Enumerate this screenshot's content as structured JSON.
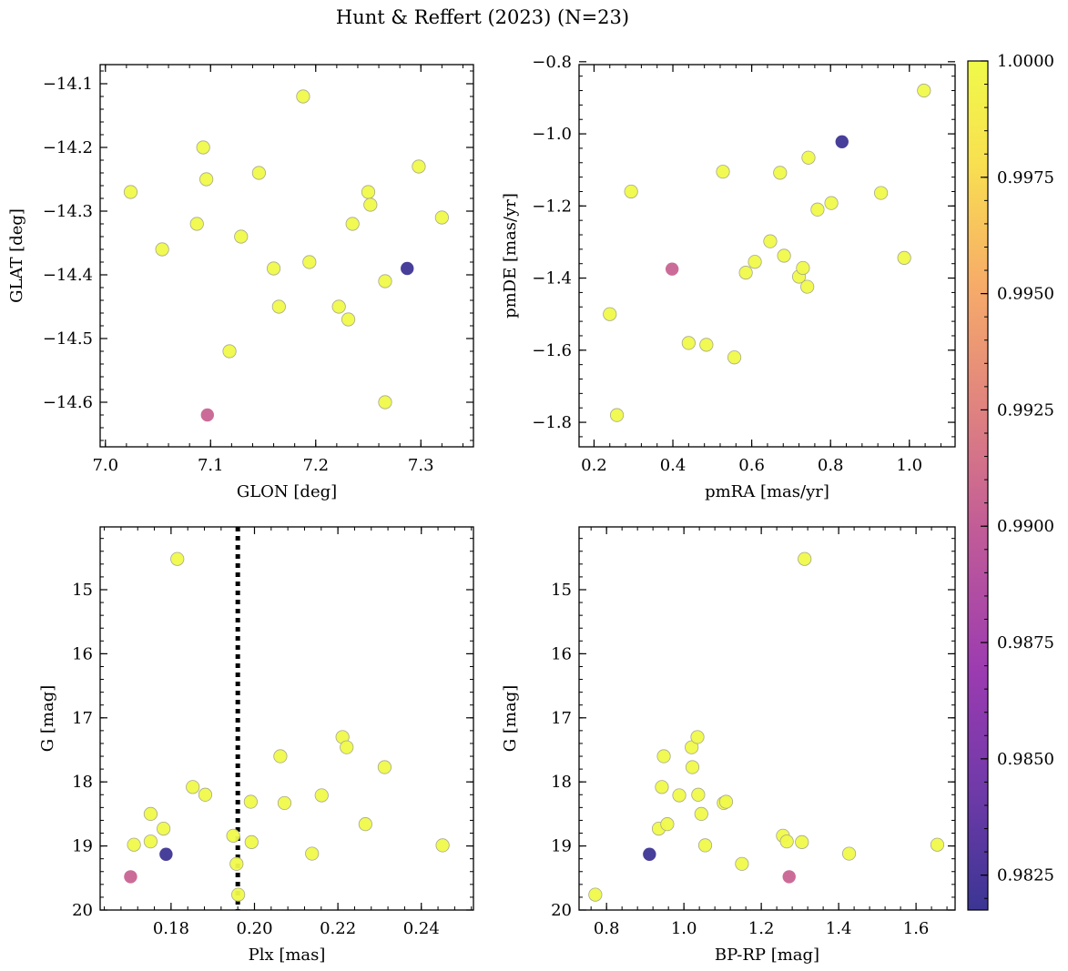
{
  "figure": {
    "title": "Hunt & Reffert (2023) (N=23)"
  },
  "colorbar": {
    "label_ticks": [
      "0.9825",
      "0.9850",
      "0.9875",
      "0.9900",
      "0.9925",
      "0.9950",
      "0.9975",
      "1.0000"
    ],
    "tick_values": [
      0.9825,
      0.985,
      0.9875,
      0.99,
      0.9925,
      0.995,
      0.9975,
      1.0
    ],
    "range": [
      0.98175,
      1.0
    ],
    "colormap": "plasma-like",
    "stops": [
      "#3b3594",
      "#6f3aa8",
      "#9b3bb1",
      "#c25c97",
      "#e2857e",
      "#f7ad68",
      "#f8e050",
      "#f0f94a"
    ]
  },
  "chart_data": [
    {
      "type": "scatter",
      "name": "glon-glat",
      "xlabel": "GLON [deg]",
      "ylabel": "GLAT [deg]",
      "xlim": [
        6.995,
        7.35
      ],
      "ylim": [
        -14.67,
        -14.07
      ],
      "inverted_y": false,
      "xticks": [
        7.0,
        7.1,
        7.2,
        7.3
      ],
      "xtick_labels": [
        "7.0",
        "7.1",
        "7.2",
        "7.3"
      ],
      "yticks": [
        -14.1,
        -14.2,
        -14.3,
        -14.4,
        -14.5,
        -14.6
      ],
      "ytick_labels": [
        "−14.1",
        "−14.2",
        "−14.3",
        "−14.4",
        "−14.5",
        "−14.6"
      ],
      "points": [
        {
          "x": 7.024,
          "y": -14.27,
          "c": 1.0
        },
        {
          "x": 7.054,
          "y": -14.36,
          "c": 1.0
        },
        {
          "x": 7.087,
          "y": -14.32,
          "c": 1.0
        },
        {
          "x": 7.093,
          "y": -14.2,
          "c": 1.0
        },
        {
          "x": 7.096,
          "y": -14.25,
          "c": 1.0
        },
        {
          "x": 7.097,
          "y": -14.62,
          "c": 0.9905
        },
        {
          "x": 7.118,
          "y": -14.52,
          "c": 1.0
        },
        {
          "x": 7.129,
          "y": -14.34,
          "c": 1.0
        },
        {
          "x": 7.146,
          "y": -14.24,
          "c": 1.0
        },
        {
          "x": 7.16,
          "y": -14.39,
          "c": 1.0
        },
        {
          "x": 7.165,
          "y": -14.45,
          "c": 1.0
        },
        {
          "x": 7.188,
          "y": -14.12,
          "c": 1.0
        },
        {
          "x": 7.194,
          "y": -14.38,
          "c": 1.0
        },
        {
          "x": 7.222,
          "y": -14.45,
          "c": 1.0
        },
        {
          "x": 7.231,
          "y": -14.47,
          "c": 1.0
        },
        {
          "x": 7.235,
          "y": -14.32,
          "c": 1.0
        },
        {
          "x": 7.25,
          "y": -14.27,
          "c": 1.0
        },
        {
          "x": 7.252,
          "y": -14.29,
          "c": 1.0
        },
        {
          "x": 7.266,
          "y": -14.41,
          "c": 1.0
        },
        {
          "x": 7.266,
          "y": -14.6,
          "c": 1.0
        },
        {
          "x": 7.287,
          "y": -14.39,
          "c": 0.9819
        },
        {
          "x": 7.298,
          "y": -14.23,
          "c": 1.0
        },
        {
          "x": 7.32,
          "y": -14.31,
          "c": 1.0
        }
      ]
    },
    {
      "type": "scatter",
      "name": "pm",
      "xlabel": "pmRA [mas/yr]",
      "ylabel": "pmDE [mas/yr]",
      "xlim": [
        0.162,
        1.116
      ],
      "ylim": [
        -1.868,
        -0.808
      ],
      "inverted_y": false,
      "xticks": [
        0.2,
        0.4,
        0.6,
        0.8,
        1.0
      ],
      "xtick_labels": [
        "0.2",
        "0.4",
        "0.6",
        "0.8",
        "1.0"
      ],
      "yticks": [
        -0.8,
        -1.0,
        -1.2,
        -1.4,
        -1.6,
        -1.8
      ],
      "ytick_labels": [
        "−0.8",
        "−1.0",
        "−1.2",
        "−1.4",
        "−1.6",
        "−1.8"
      ],
      "points": [
        {
          "x": 0.24,
          "y": -1.5,
          "c": 1.0
        },
        {
          "x": 0.258,
          "y": -1.78,
          "c": 1.0
        },
        {
          "x": 0.294,
          "y": -1.16,
          "c": 1.0
        },
        {
          "x": 0.398,
          "y": -1.375,
          "c": 0.9905
        },
        {
          "x": 0.44,
          "y": -1.58,
          "c": 1.0
        },
        {
          "x": 0.485,
          "y": -1.585,
          "c": 1.0
        },
        {
          "x": 0.527,
          "y": -1.105,
          "c": 1.0
        },
        {
          "x": 0.556,
          "y": -1.62,
          "c": 1.0
        },
        {
          "x": 0.585,
          "y": -1.385,
          "c": 1.0
        },
        {
          "x": 0.608,
          "y": -1.355,
          "c": 1.0
        },
        {
          "x": 0.647,
          "y": -1.298,
          "c": 1.0
        },
        {
          "x": 0.672,
          "y": -1.108,
          "c": 1.0
        },
        {
          "x": 0.682,
          "y": -1.338,
          "c": 1.0
        },
        {
          "x": 0.72,
          "y": -1.396,
          "c": 1.0
        },
        {
          "x": 0.73,
          "y": -1.372,
          "c": 1.0
        },
        {
          "x": 0.741,
          "y": -1.424,
          "c": 1.0
        },
        {
          "x": 0.744,
          "y": -1.066,
          "c": 1.0
        },
        {
          "x": 0.767,
          "y": -1.21,
          "c": 1.0
        },
        {
          "x": 0.802,
          "y": -1.192,
          "c": 1.0
        },
        {
          "x": 0.829,
          "y": -1.022,
          "c": 0.9819
        },
        {
          "x": 0.928,
          "y": -1.164,
          "c": 1.0
        },
        {
          "x": 0.987,
          "y": -1.344,
          "c": 1.0
        },
        {
          "x": 1.037,
          "y": -0.88,
          "c": 1.0
        }
      ]
    },
    {
      "type": "scatter",
      "name": "plx-g",
      "xlabel": "Plx [mas]",
      "ylabel": "G [mag]",
      "xlim": [
        0.163,
        0.2525
      ],
      "ylim": [
        20.0,
        14.02
      ],
      "inverted_y": true,
      "vline": {
        "x": 0.196,
        "style": "dotted"
      },
      "xticks": [
        0.18,
        0.2,
        0.22,
        0.24
      ],
      "xtick_labels": [
        "0.18",
        "0.20",
        "0.22",
        "0.24"
      ],
      "yticks": [
        15,
        16,
        17,
        18,
        19,
        20
      ],
      "ytick_labels": [
        "15",
        "16",
        "17",
        "18",
        "19",
        "20"
      ],
      "points": [
        {
          "x": 0.1703,
          "y": 19.48,
          "c": 0.9905
        },
        {
          "x": 0.1711,
          "y": 18.98,
          "c": 1.0
        },
        {
          "x": 0.1751,
          "y": 18.5,
          "c": 1.0
        },
        {
          "x": 0.1751,
          "y": 18.93,
          "c": 1.0
        },
        {
          "x": 0.1782,
          "y": 18.73,
          "c": 1.0
        },
        {
          "x": 0.1788,
          "y": 19.13,
          "c": 0.9819
        },
        {
          "x": 0.1815,
          "y": 14.52,
          "c": 1.0
        },
        {
          "x": 0.1852,
          "y": 18.08,
          "c": 1.0
        },
        {
          "x": 0.1882,
          "y": 18.2,
          "c": 1.0
        },
        {
          "x": 0.1949,
          "y": 18.84,
          "c": 1.0
        },
        {
          "x": 0.1957,
          "y": 19.28,
          "c": 1.0
        },
        {
          "x": 0.1961,
          "y": 19.76,
          "c": 1.0
        },
        {
          "x": 0.1991,
          "y": 18.31,
          "c": 1.0
        },
        {
          "x": 0.1993,
          "y": 18.94,
          "c": 1.0
        },
        {
          "x": 0.2062,
          "y": 17.6,
          "c": 1.0
        },
        {
          "x": 0.2072,
          "y": 18.33,
          "c": 1.0
        },
        {
          "x": 0.2138,
          "y": 19.12,
          "c": 1.0
        },
        {
          "x": 0.2161,
          "y": 18.21,
          "c": 1.0
        },
        {
          "x": 0.2211,
          "y": 17.3,
          "c": 1.0
        },
        {
          "x": 0.2221,
          "y": 17.46,
          "c": 1.0
        },
        {
          "x": 0.2266,
          "y": 18.66,
          "c": 1.0
        },
        {
          "x": 0.2312,
          "y": 17.77,
          "c": 1.0
        },
        {
          "x": 0.2451,
          "y": 18.99,
          "c": 1.0
        }
      ]
    },
    {
      "type": "scatter",
      "name": "cmd",
      "xlabel": "BP-RP [mag]",
      "ylabel": "G [mag]",
      "xlim": [
        0.729,
        1.701
      ],
      "ylim": [
        20.0,
        14.02
      ],
      "inverted_y": true,
      "xticks": [
        0.8,
        1.0,
        1.2,
        1.4,
        1.6
      ],
      "xtick_labels": [
        "0.8",
        "1.0",
        "1.2",
        "1.4",
        "1.6"
      ],
      "yticks": [
        15,
        16,
        17,
        18,
        19,
        20
      ],
      "ytick_labels": [
        "15",
        "16",
        "17",
        "18",
        "19",
        "20"
      ],
      "points": [
        {
          "x": 0.771,
          "y": 19.76,
          "c": 1.0
        },
        {
          "x": 0.911,
          "y": 19.13,
          "c": 0.9819
        },
        {
          "x": 0.935,
          "y": 18.73,
          "c": 1.0
        },
        {
          "x": 0.943,
          "y": 18.08,
          "c": 1.0
        },
        {
          "x": 0.948,
          "y": 17.6,
          "c": 1.0
        },
        {
          "x": 0.957,
          "y": 18.66,
          "c": 1.0
        },
        {
          "x": 0.988,
          "y": 18.21,
          "c": 1.0
        },
        {
          "x": 1.02,
          "y": 17.46,
          "c": 1.0
        },
        {
          "x": 1.022,
          "y": 17.77,
          "c": 1.0
        },
        {
          "x": 1.035,
          "y": 17.3,
          "c": 1.0
        },
        {
          "x": 1.037,
          "y": 18.2,
          "c": 1.0
        },
        {
          "x": 1.045,
          "y": 18.5,
          "c": 1.0
        },
        {
          "x": 1.055,
          "y": 18.99,
          "c": 1.0
        },
        {
          "x": 1.103,
          "y": 18.33,
          "c": 1.0
        },
        {
          "x": 1.109,
          "y": 18.31,
          "c": 1.0
        },
        {
          "x": 1.15,
          "y": 19.28,
          "c": 1.0
        },
        {
          "x": 1.256,
          "y": 18.84,
          "c": 1.0
        },
        {
          "x": 1.266,
          "y": 18.93,
          "c": 1.0
        },
        {
          "x": 1.272,
          "y": 19.48,
          "c": 0.9905
        },
        {
          "x": 1.305,
          "y": 18.94,
          "c": 1.0
        },
        {
          "x": 1.312,
          "y": 14.52,
          "c": 1.0
        },
        {
          "x": 1.427,
          "y": 19.12,
          "c": 1.0
        },
        {
          "x": 1.655,
          "y": 18.98,
          "c": 1.0
        }
      ]
    }
  ]
}
